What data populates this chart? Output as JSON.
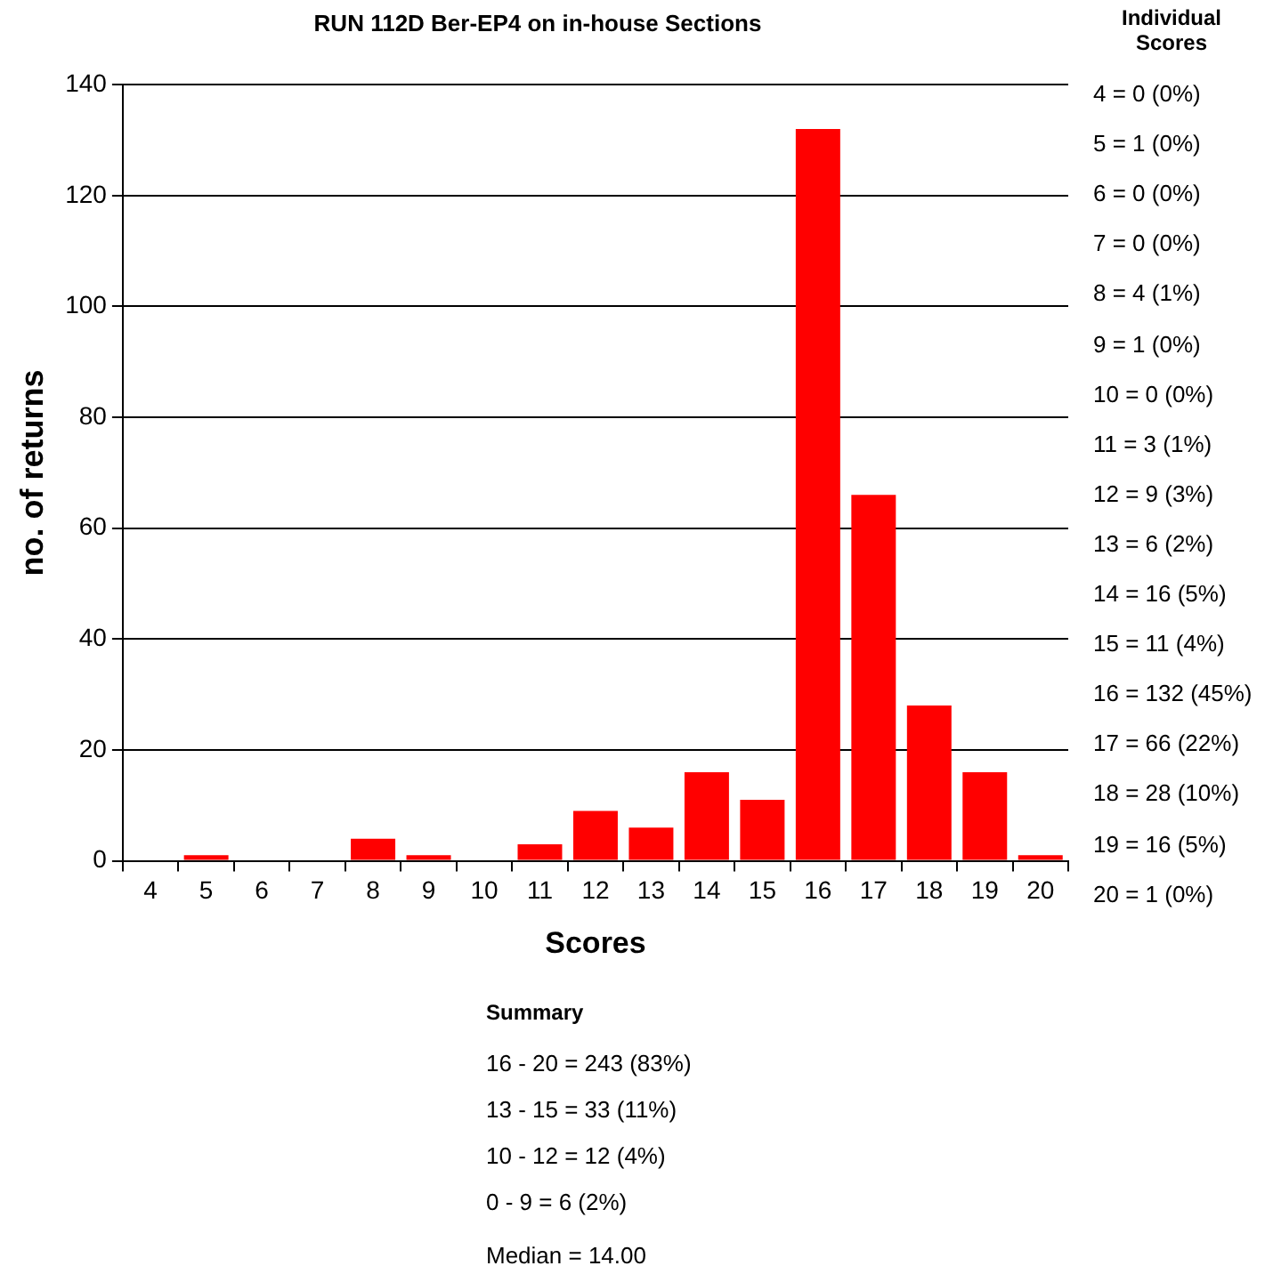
{
  "chart_data": {
    "type": "bar",
    "title": "RUN 112D Ber-EP4 on in-house Sections",
    "xlabel": "Scores",
    "ylabel": "no. of returns",
    "categories": [
      "4",
      "5",
      "6",
      "7",
      "8",
      "9",
      "10",
      "11",
      "12",
      "13",
      "14",
      "15",
      "16",
      "17",
      "18",
      "19",
      "20"
    ],
    "values": [
      0,
      1,
      0,
      0,
      4,
      1,
      0,
      3,
      9,
      6,
      16,
      11,
      132,
      66,
      28,
      16,
      1
    ],
    "color": "#ff0000",
    "ylim": [
      0,
      140
    ],
    "yticks": [
      0,
      20,
      40,
      60,
      80,
      100,
      120,
      140
    ],
    "grid": "y",
    "legend": false,
    "annotations": [
      "Individual Scores",
      "4 = 0 (0%)",
      "5 = 1 (0%)",
      "6 = 0 (0%)",
      "7 = 0 (0%)",
      "8 = 4 (1%)",
      "9 = 1 (0%)",
      "10 = 0 (0%)",
      "11 = 3 (1%)",
      "12 = 9 (3%)",
      "13 = 6 (2%)",
      "14 = 16 (5%)",
      "15 = 11 (4%)",
      "16 = 132 (45%)",
      "17 = 66 (22%)",
      "18 = 28 (10%)",
      "19 = 16 (5%)",
      "20 = 1 (0%)",
      "Summary",
      "16 - 20 = 243 (83%)",
      "13 - 15 = 33 (11%)",
      "10 - 12 = 12 (4%)",
      "0 - 9 = 6 (2%)",
      "Median = 14.00"
    ]
  }
}
